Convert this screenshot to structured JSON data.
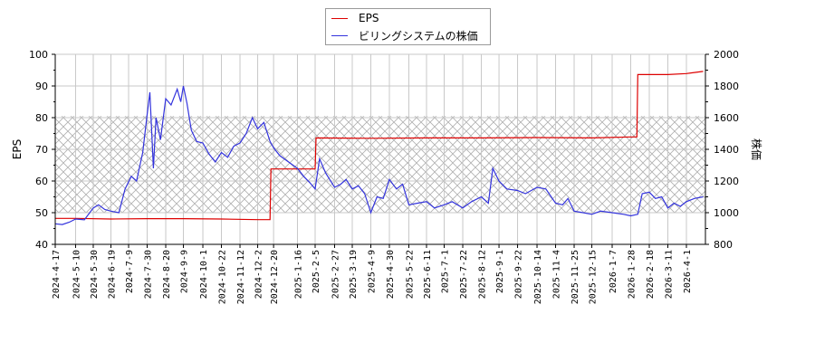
{
  "legend": {
    "items": [
      {
        "label": "EPS",
        "color": "#dd0000"
      },
      {
        "label": "ビリングシステムの株価",
        "color": "#3333dd"
      }
    ]
  },
  "axes": {
    "left_title": "EPS",
    "right_title": "株価",
    "left_ticks": [
      "100",
      "90",
      "80",
      "70",
      "60",
      "50",
      "40"
    ],
    "right_ticks": [
      "2000",
      "1800",
      "1600",
      "1400",
      "1200",
      "1000",
      "800"
    ]
  },
  "chart_data": {
    "type": "line",
    "title": "",
    "xlabel": "",
    "ylabel": "EPS",
    "y2label": "株価",
    "ylim": [
      40,
      100
    ],
    "y2lim": [
      800,
      2000
    ],
    "grid": true,
    "legend_position": "top-center",
    "x_tick_labels": [
      "2024-4-17",
      "2024-5-10",
      "2024-5-30",
      "2024-6-19",
      "2024-7-9",
      "2024-7-30",
      "2024-8-20",
      "2024-9-9",
      "2024-10-1",
      "2024-10-22",
      "2024-11-12",
      "2024-12-2",
      "2024-12-20",
      "2025-1-16",
      "2025-2-5",
      "2025-2-27",
      "2025-3-19",
      "2025-4-9",
      "2025-4-30",
      "2025-5-22",
      "2025-6-11",
      "2025-7-1",
      "2025-7-22",
      "2025-8-12",
      "2025-9-1",
      "2025-9-22",
      "2025-10-14",
      "2025-11-4",
      "2025-11-25",
      "2025-12-15",
      "2026-1-7",
      "2026-1-28",
      "2026-2-18",
      "2026-3-11",
      "2026-4-1"
    ],
    "shaded_band": {
      "y_from": 50,
      "y_to": 80.5,
      "pattern": "crosshatch"
    },
    "series": [
      {
        "name": "EPS",
        "axis": "left",
        "color": "#dd0000",
        "points": [
          [
            "2024-4-17",
            48.2
          ],
          [
            "2024-5-10",
            48.2
          ],
          [
            "2024-6-19",
            48.0
          ],
          [
            "2024-7-30",
            48.1
          ],
          [
            "2024-9-9",
            48.1
          ],
          [
            "2024-10-22",
            48.0
          ],
          [
            "2024-12-2",
            47.8
          ],
          [
            "2024-12-16",
            47.8
          ],
          [
            "2024-12-17",
            63.8
          ],
          [
            "2025-2-5",
            63.8
          ],
          [
            "2025-2-6",
            73.6
          ],
          [
            "2025-4-9",
            73.5
          ],
          [
            "2025-6-11",
            73.6
          ],
          [
            "2025-8-12",
            73.6
          ],
          [
            "2025-10-14",
            73.7
          ],
          [
            "2025-12-15",
            73.6
          ],
          [
            "2026-1-28",
            73.9
          ],
          [
            "2026-2-4",
            73.9
          ],
          [
            "2026-2-5",
            93.6
          ],
          [
            "2026-3-11",
            93.6
          ],
          [
            "2026-4-1",
            93.9
          ],
          [
            "2026-4-20",
            94.6
          ]
        ]
      },
      {
        "name": "ビリングシステムの株価",
        "axis": "right",
        "color": "#3333dd",
        "points": [
          [
            "2024-4-17",
            930
          ],
          [
            "2024-4-25",
            925
          ],
          [
            "2024-5-3",
            940
          ],
          [
            "2024-5-10",
            960
          ],
          [
            "2024-5-20",
            955
          ],
          [
            "2024-5-30",
            1030
          ],
          [
            "2024-6-5",
            1050
          ],
          [
            "2024-6-12",
            1020
          ],
          [
            "2024-6-19",
            1010
          ],
          [
            "2024-6-28",
            1000
          ],
          [
            "2024-7-5",
            1150
          ],
          [
            "2024-7-12",
            1230
          ],
          [
            "2024-7-18",
            1200
          ],
          [
            "2024-7-25",
            1380
          ],
          [
            "2024-7-30",
            1620
          ],
          [
            "2024-8-2",
            1760
          ],
          [
            "2024-8-6",
            1280
          ],
          [
            "2024-8-9",
            1600
          ],
          [
            "2024-8-14",
            1460
          ],
          [
            "2024-8-20",
            1720
          ],
          [
            "2024-8-26",
            1680
          ],
          [
            "2024-9-2",
            1780
          ],
          [
            "2024-9-6",
            1700
          ],
          [
            "2024-9-9",
            1800
          ],
          [
            "2024-9-13",
            1690
          ],
          [
            "2024-9-18",
            1520
          ],
          [
            "2024-9-24",
            1450
          ],
          [
            "2024-10-1",
            1440
          ],
          [
            "2024-10-8",
            1370
          ],
          [
            "2024-10-15",
            1320
          ],
          [
            "2024-10-22",
            1380
          ],
          [
            "2024-10-29",
            1350
          ],
          [
            "2024-11-5",
            1420
          ],
          [
            "2024-11-12",
            1440
          ],
          [
            "2024-11-19",
            1500
          ],
          [
            "2024-11-26",
            1600
          ],
          [
            "2024-12-2",
            1530
          ],
          [
            "2024-12-9",
            1570
          ],
          [
            "2024-12-16",
            1450
          ],
          [
            "2024-12-20",
            1410
          ],
          [
            "2024-12-27",
            1360
          ],
          [
            "2025-1-6",
            1320
          ],
          [
            "2025-1-16",
            1280
          ],
          [
            "2025-1-23",
            1230
          ],
          [
            "2025-1-30",
            1190
          ],
          [
            "2025-2-5",
            1150
          ],
          [
            "2025-2-10",
            1340
          ],
          [
            "2025-2-17",
            1250
          ],
          [
            "2025-2-27",
            1160
          ],
          [
            "2025-3-6",
            1180
          ],
          [
            "2025-3-12",
            1210
          ],
          [
            "2025-3-19",
            1150
          ],
          [
            "2025-3-26",
            1170
          ],
          [
            "2025-4-2",
            1120
          ],
          [
            "2025-4-9",
            1000
          ],
          [
            "2025-4-16",
            1100
          ],
          [
            "2025-4-23",
            1090
          ],
          [
            "2025-4-30",
            1210
          ],
          [
            "2025-5-8",
            1150
          ],
          [
            "2025-5-15",
            1180
          ],
          [
            "2025-5-22",
            1050
          ],
          [
            "2025-6-1",
            1060
          ],
          [
            "2025-6-11",
            1070
          ],
          [
            "2025-6-20",
            1030
          ],
          [
            "2025-7-1",
            1050
          ],
          [
            "2025-7-10",
            1070
          ],
          [
            "2025-7-22",
            1030
          ],
          [
            "2025-8-1",
            1070
          ],
          [
            "2025-8-12",
            1100
          ],
          [
            "2025-8-20",
            1060
          ],
          [
            "2025-8-25",
            1280
          ],
          [
            "2025-9-1",
            1200
          ],
          [
            "2025-9-10",
            1150
          ],
          [
            "2025-9-22",
            1140
          ],
          [
            "2025-10-1",
            1120
          ],
          [
            "2025-10-14",
            1160
          ],
          [
            "2025-10-24",
            1150
          ],
          [
            "2025-11-4",
            1060
          ],
          [
            "2025-11-12",
            1050
          ],
          [
            "2025-11-18",
            1090
          ],
          [
            "2025-11-25",
            1010
          ],
          [
            "2025-12-5",
            1000
          ],
          [
            "2025-12-15",
            990
          ],
          [
            "2025-12-25",
            1010
          ],
          [
            "2026-1-7",
            1000
          ],
          [
            "2026-1-20",
            990
          ],
          [
            "2026-1-28",
            980
          ],
          [
            "2026-2-5",
            990
          ],
          [
            "2026-2-10",
            1120
          ],
          [
            "2026-2-18",
            1130
          ],
          [
            "2026-2-25",
            1090
          ],
          [
            "2026-3-4",
            1100
          ],
          [
            "2026-3-11",
            1030
          ],
          [
            "2026-3-18",
            1060
          ],
          [
            "2026-3-25",
            1040
          ],
          [
            "2026-4-1",
            1070
          ],
          [
            "2026-4-10",
            1090
          ],
          [
            "2026-4-20",
            1100
          ]
        ]
      }
    ]
  }
}
